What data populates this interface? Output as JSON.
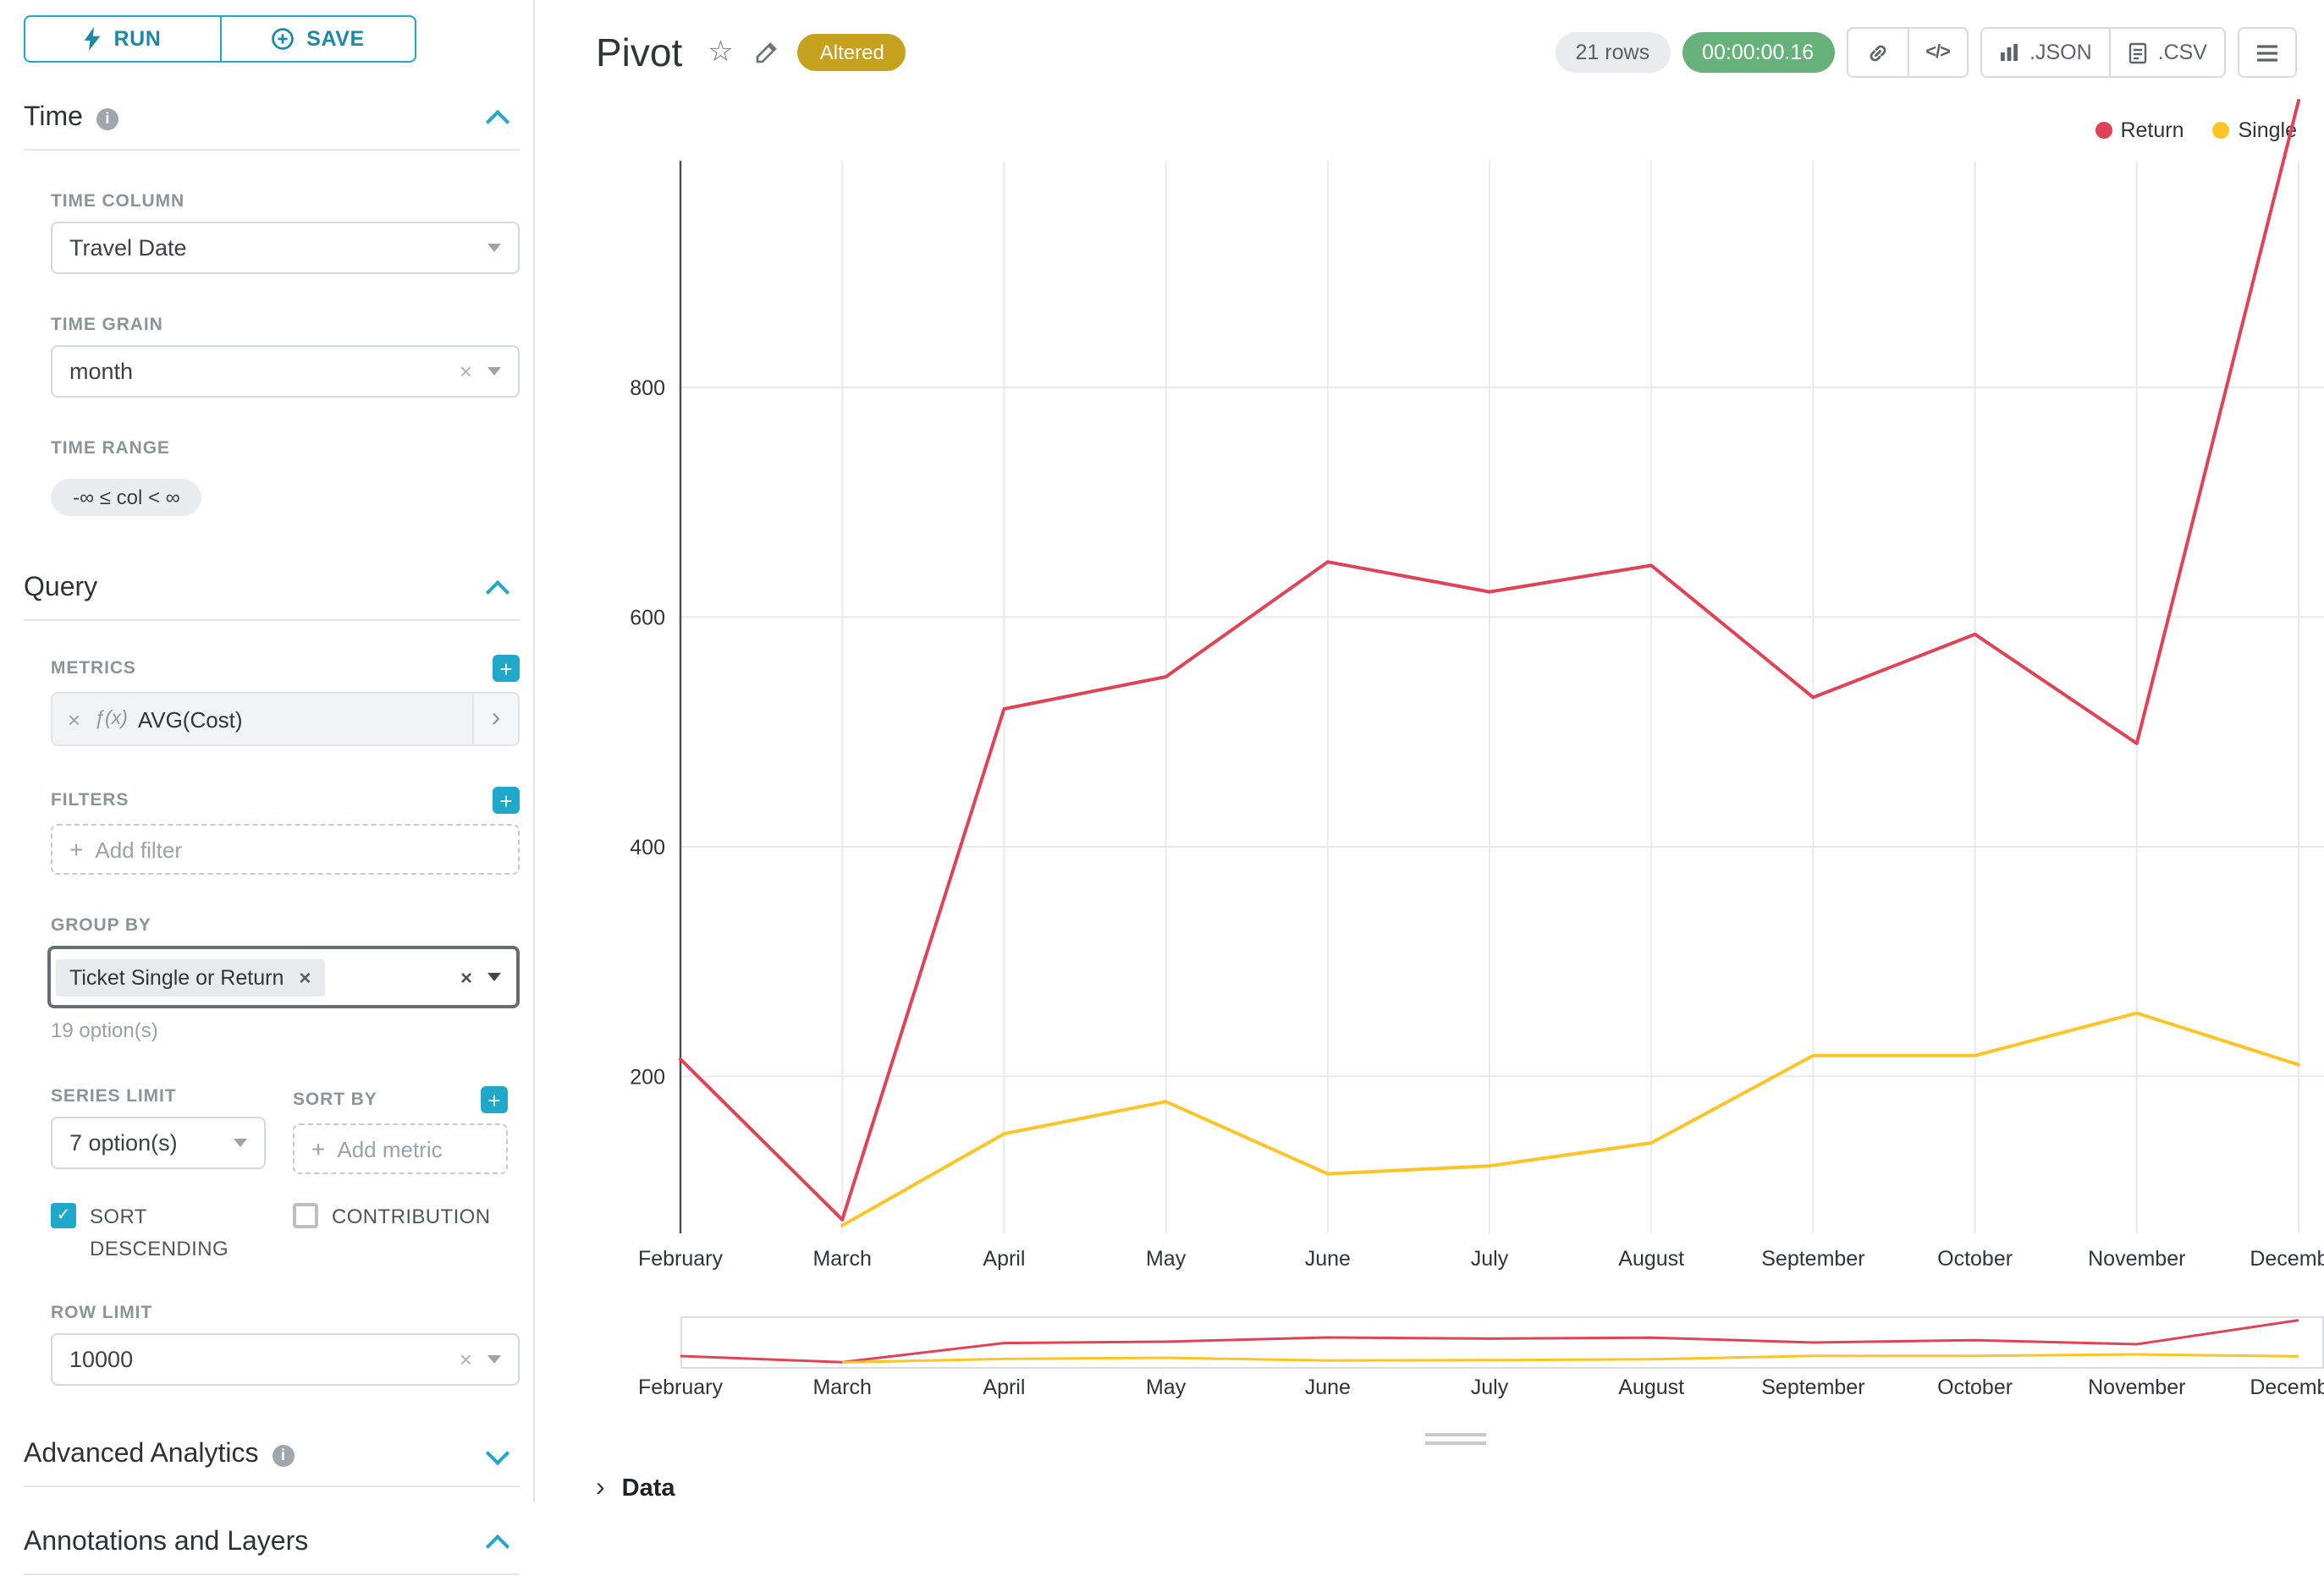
{
  "colors": {
    "accent": "#1fa8c9",
    "altered_badge": "#c6a11d",
    "timer_badge": "#67b27b"
  },
  "icons": {
    "close": "×",
    "check": "✓",
    "chevron_right": "›",
    "star": "☆",
    "fx": "ƒ(x)",
    "plus": "+",
    "info": "i",
    "code": "</>"
  },
  "sidebar": {
    "run_label": "RUN",
    "save_label": "SAVE",
    "time": {
      "title": "Time",
      "time_column": {
        "label": "TIME COLUMN",
        "value": "Travel Date"
      },
      "time_grain": {
        "label": "TIME GRAIN",
        "value": "month"
      },
      "time_range": {
        "label": "TIME RANGE",
        "value": "-∞ ≤ col < ∞"
      }
    },
    "query": {
      "title": "Query",
      "metrics_label": "METRICS",
      "metric": "AVG(Cost)",
      "filters_label": "FILTERS",
      "add_filter": "Add filter",
      "group_by_label": "GROUP BY",
      "group_by_tag": "Ticket Single or Return",
      "group_by_hint": "19 option(s)",
      "series_limit_label": "SERIES LIMIT",
      "series_limit_value": "7 option(s)",
      "sort_by_label": "SORT BY",
      "add_metric": "Add metric",
      "sort_descending_label": "SORT DESCENDING",
      "contribution_label": "CONTRIBUTION",
      "row_limit_label": "ROW LIMIT",
      "row_limit_value": "10000"
    },
    "advanced_title": "Advanced Analytics",
    "annotations_title": "Annotations and Layers"
  },
  "header": {
    "title": "Pivot",
    "badge": "Altered",
    "rows_badge": "21 rows",
    "timer": "00:00:00.16",
    "export_json": ".JSON",
    "export_csv": ".CSV"
  },
  "footer": {
    "data_label": "Data"
  },
  "chart_data": {
    "type": "line",
    "x": [
      "February",
      "March",
      "April",
      "May",
      "June",
      "July",
      "August",
      "September",
      "October",
      "November",
      "December"
    ],
    "series": [
      {
        "name": "Return",
        "color": "#e04355",
        "values": [
          215,
          75,
          520,
          548,
          648,
          622,
          645,
          530,
          585,
          490,
          1050
        ]
      },
      {
        "name": "Single",
        "color": "#fcc425",
        "values": [
          null,
          70,
          150,
          178,
          115,
          122,
          142,
          218,
          218,
          255,
          210
        ]
      }
    ],
    "yticks": [
      200,
      400,
      600,
      800
    ],
    "ylim": [
      60,
      1000
    ],
    "xlabel": "",
    "ylabel": "",
    "grid": true,
    "legend_position": "top-right",
    "has_minimap": true
  }
}
